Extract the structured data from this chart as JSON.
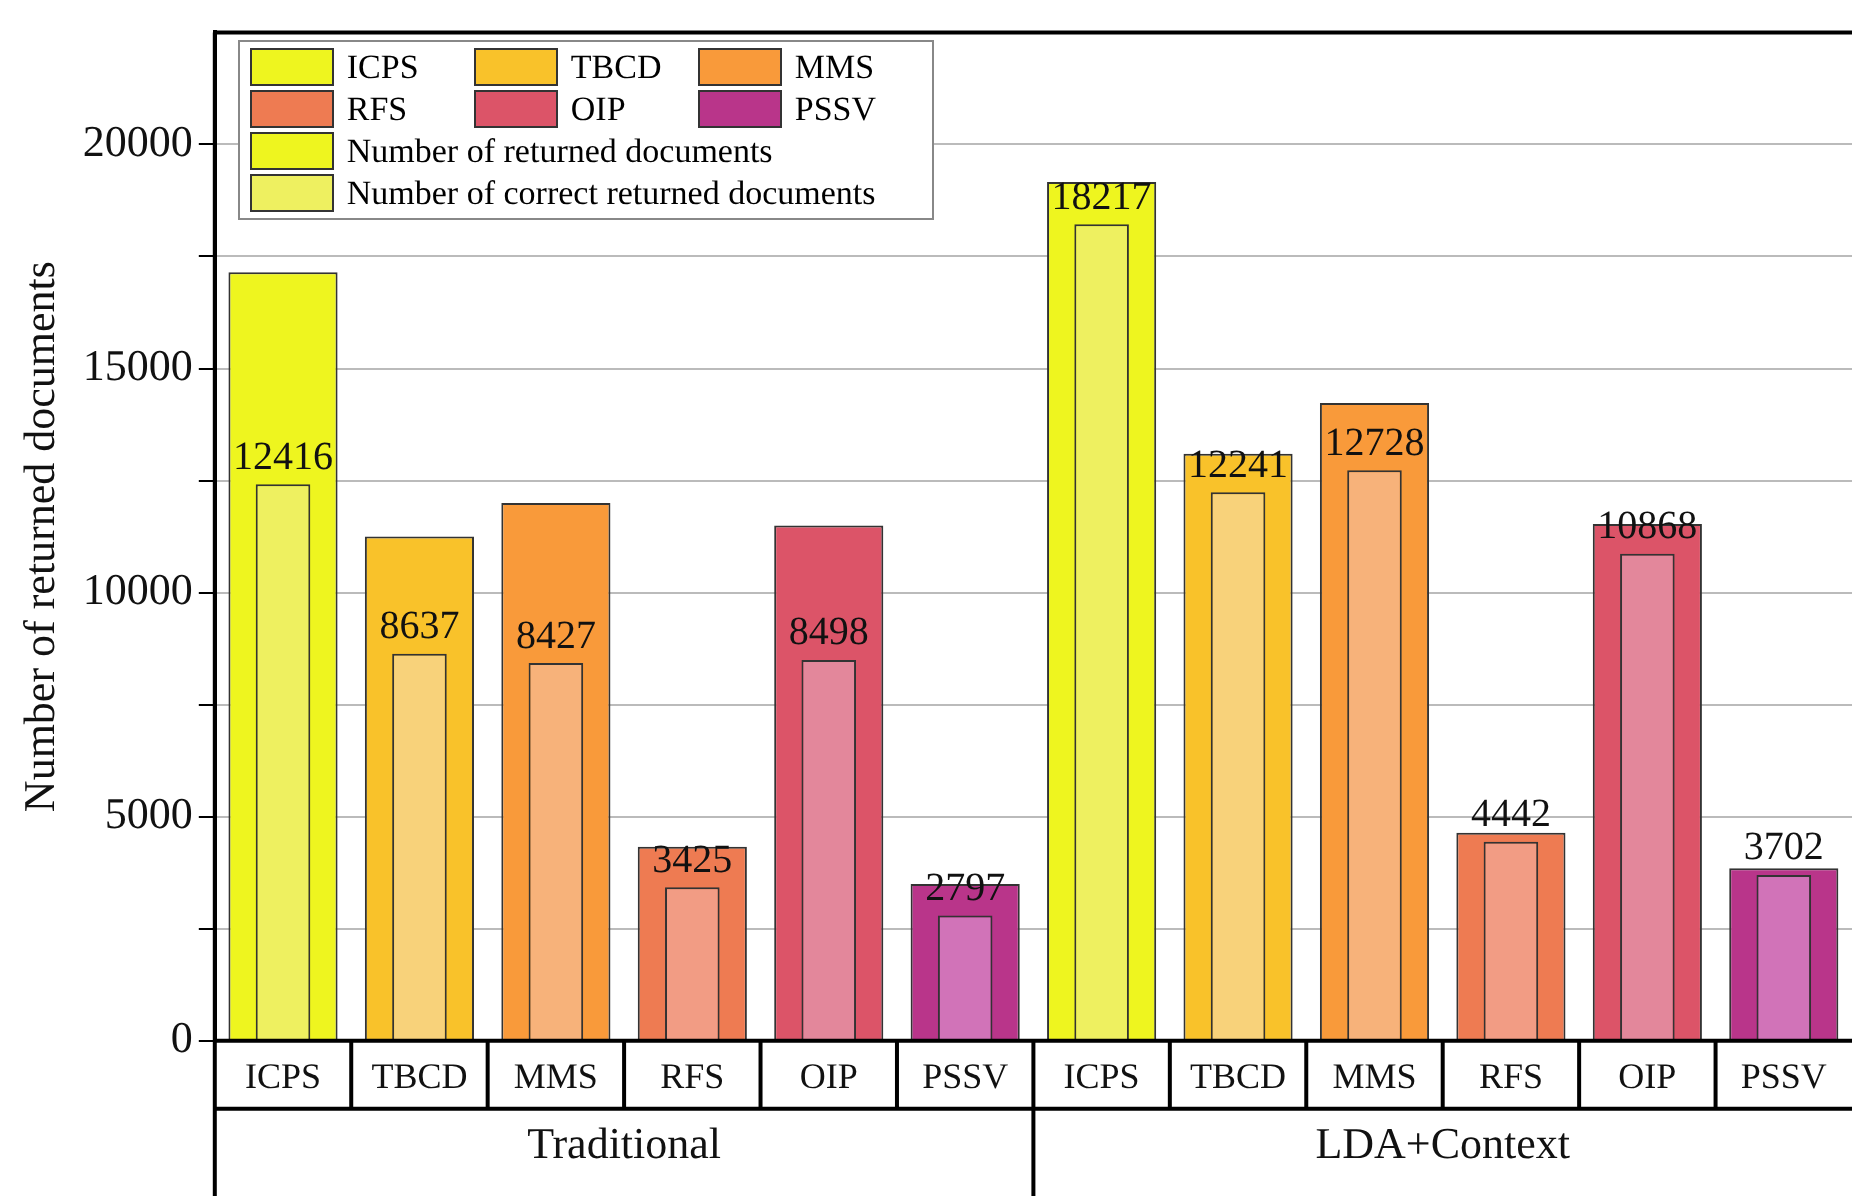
{
  "chart_data": {
    "type": "bar",
    "ylabel": "Number of returned documents",
    "categories": [
      "ICPS",
      "TBCD",
      "MMS",
      "RFS",
      "OIP",
      "PSSV",
      "ICPS",
      "TBCD",
      "MMS",
      "RFS",
      "OIP",
      "PSSV"
    ],
    "series": [
      {
        "name": "Number of returned documents",
        "values": [
          17150,
          11250,
          12000,
          4330,
          11500,
          3500,
          19160,
          13100,
          14230,
          4640,
          11530,
          3850
        ],
        "colors": [
          "#eef51f",
          "#f9c22a",
          "#f99a3a",
          "#ee7b52",
          "#dc5468",
          "#b9358a",
          "#eef51f",
          "#f9c22a",
          "#f99a3a",
          "#ee7b52",
          "#dc5468",
          "#b9358a"
        ]
      },
      {
        "name": "Number of correct returned documents",
        "values": [
          12416,
          8637,
          8427,
          3425,
          8498,
          2797,
          18217,
          12241,
          12728,
          4442,
          10868,
          3702
        ],
        "value_labels": [
          "12416",
          "8637",
          "8427",
          "3425",
          "8498",
          "2797",
          "18217",
          "12241",
          "12728",
          "4442",
          "10868",
          "3702"
        ],
        "colors": [
          "#eef060",
          "#f8d27a",
          "#f7b27a",
          "#f29c84",
          "#e3879b",
          "#d173b8",
          "#eef060",
          "#f8d27a",
          "#f7b27a",
          "#f29c84",
          "#e3879b",
          "#d173b8"
        ]
      }
    ],
    "annotations": [
      {
        "text": "Traditional"
      },
      {
        "text": "LDA+Context"
      }
    ],
    "ylim": [
      0,
      22500
    ],
    "yticks": [
      0,
      {
        "value": 2500,
        "label": null
      },
      5000,
      {
        "value": 7500,
        "label": null
      },
      10000,
      {
        "value": 12500,
        "label": null
      },
      15000,
      {
        "value": 17500,
        "label": null
      },
      20000
    ],
    "grid": "y",
    "legend": "top left"
  }
}
